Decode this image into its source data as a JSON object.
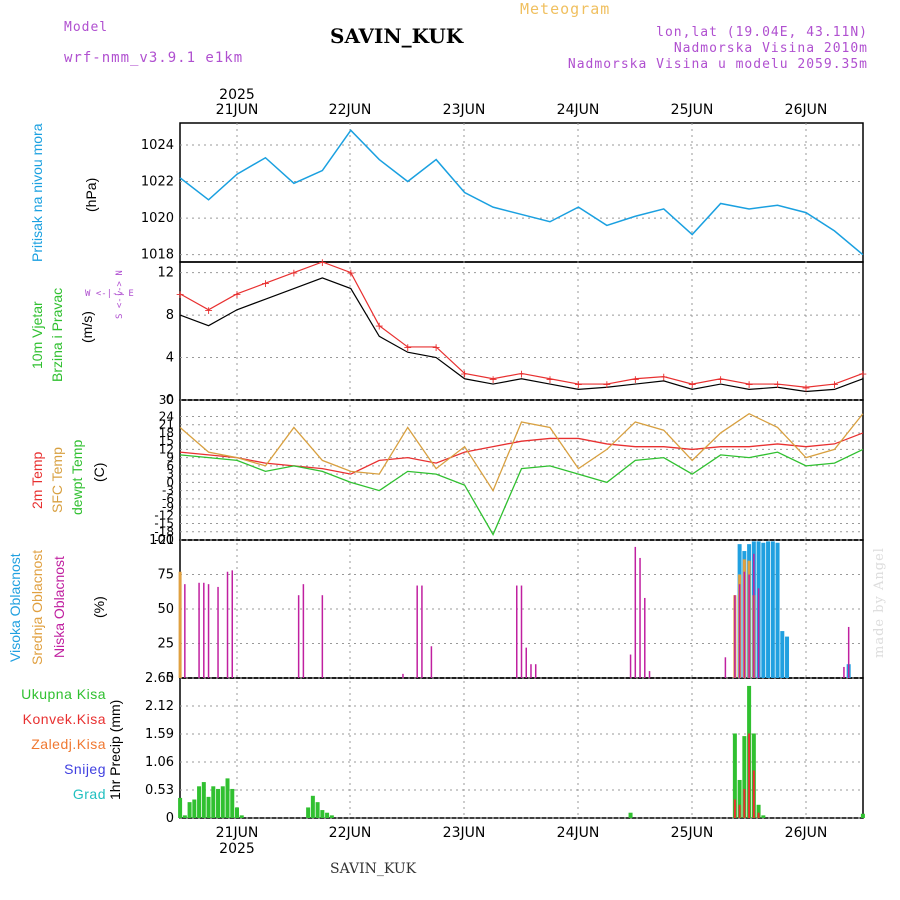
{
  "header": {
    "model_label": "Model",
    "model_name": "wrf-nmm_v3.9.1 e1km",
    "title": "SAVIN_KUK",
    "subtitle": "Meteogram",
    "lonlat": "lon,lat (19.04E, 43.11N)",
    "elevation": "Nadmorska Visina 2010m",
    "model_elevation": "Nadmorska Visina u modelu 2059.35m"
  },
  "footer": {
    "station": "SAVIN_KUK",
    "watermark": "made by Angel"
  },
  "colors": {
    "pressure": "#1aa0e0",
    "temp2m": "#e83030",
    "sfc_temp": "#d8a040",
    "dewpt": "#30c030",
    "high_cloud": "#20a0e0",
    "mid_cloud": "#e0a040",
    "low_cloud": "#c020a0",
    "precip_total": "#30c030",
    "precip_conv": "#e83030",
    "wind_speed": "#000000",
    "wind_gust": "#e83030"
  },
  "time_axis": {
    "year": "2025",
    "days": [
      "21JUN",
      "22JUN",
      "23JUN",
      "24JUN",
      "25JUN",
      "26JUN"
    ],
    "start_hour": 0,
    "end_hour": 144
  },
  "panel_labels": {
    "pressure": [
      "Pritisak na nivou mora",
      "(hPa)"
    ],
    "wind": [
      "10m Vjetar",
      "Brzina i Pravac",
      "(m/s)"
    ],
    "wind_compass": [
      "N",
      "W <-|-> E",
      "S"
    ],
    "temp": [
      "2m Temp",
      "SFC Temp",
      "dewpt Temp",
      "(C)"
    ],
    "cloud": [
      "Visoka Oblacnost",
      "Srednja Oblacnost",
      "Niska Oblacnost",
      "(%)"
    ],
    "precip_legend": [
      "Ukupna Kisa",
      "Konvek.Kisa",
      "Zaledj.Kisa",
      "Snijeg",
      "Grad"
    ],
    "precip_unit": "1hr Precip (mm)"
  },
  "chart_data": [
    {
      "type": "line",
      "name": "pressure",
      "ylabel": "(hPa)",
      "ylim": [
        1017.6,
        1025.2
      ],
      "yticks": [
        "1018",
        "1020",
        "1022",
        "1024"
      ],
      "ytick_values": [
        1018,
        1020,
        1022,
        1024
      ],
      "x_hours": [
        0,
        6,
        12,
        18,
        24,
        30,
        36,
        42,
        48,
        54,
        60,
        66,
        72,
        78,
        84,
        90,
        96,
        102,
        108,
        114,
        120,
        126,
        132,
        138,
        144
      ],
      "values": [
        1022.2,
        1021.0,
        1022.4,
        1023.3,
        1021.9,
        1022.6,
        1024.8,
        1023.2,
        1022.0,
        1023.2,
        1021.4,
        1020.6,
        1020.2,
        1019.8,
        1020.6,
        1019.6,
        1020.1,
        1020.5,
        1019.1,
        1020.8,
        1020.5,
        1020.7,
        1020.3,
        1019.3,
        1018.0
      ]
    },
    {
      "type": "line",
      "name": "wind",
      "ylabel": "(m/s)",
      "ylim": [
        0,
        13
      ],
      "yticks": [
        "0",
        "4",
        "8",
        "12"
      ],
      "ytick_values": [
        0,
        4,
        8,
        12
      ],
      "x_hours": [
        0,
        6,
        12,
        18,
        24,
        30,
        36,
        42,
        48,
        54,
        60,
        66,
        72,
        78,
        84,
        90,
        96,
        102,
        108,
        114,
        120,
        126,
        132,
        138,
        144
      ],
      "speed": [
        8.0,
        7.0,
        8.5,
        9.5,
        10.5,
        11.5,
        10.5,
        6.0,
        4.5,
        4.0,
        2.0,
        1.5,
        2.0,
        1.5,
        1.0,
        1.2,
        1.5,
        1.8,
        1.0,
        1.5,
        1.0,
        1.2,
        0.8,
        1.0,
        2.0
      ],
      "gust": [
        10.0,
        8.5,
        10.0,
        11.0,
        12.0,
        13.0,
        12.0,
        7.0,
        5.0,
        5.0,
        2.5,
        2.0,
        2.5,
        2.0,
        1.5,
        1.5,
        2.0,
        2.2,
        1.5,
        2.0,
        1.5,
        1.5,
        1.2,
        1.5,
        2.5
      ]
    },
    {
      "type": "line",
      "name": "temperature",
      "ylabel": "(C)",
      "ylim": [
        -21,
        30
      ],
      "yticks": [
        "30",
        "24",
        "21",
        "18",
        "15",
        "12",
        "9",
        "6",
        "3",
        "0",
        "-3",
        "-6",
        "-9",
        "-12",
        "-15",
        "-18",
        "-21"
      ],
      "ytick_values": [
        30,
        24,
        21,
        18,
        15,
        12,
        9,
        6,
        3,
        0,
        -3,
        -6,
        -9,
        -12,
        -15,
        -18,
        -21
      ],
      "x_hours": [
        0,
        6,
        12,
        18,
        24,
        30,
        36,
        42,
        48,
        54,
        60,
        66,
        72,
        78,
        84,
        90,
        96,
        102,
        108,
        114,
        120,
        126,
        132,
        138,
        144
      ],
      "series": [
        {
          "name": "2m Temp",
          "values": [
            11,
            10,
            9,
            7,
            6,
            5,
            3,
            8,
            9,
            7,
            11,
            13,
            15,
            16,
            16,
            14,
            13,
            13,
            12,
            13,
            13,
            14,
            13,
            14,
            18
          ]
        },
        {
          "name": "SFC Temp",
          "values": [
            20,
            11,
            9,
            6,
            20,
            8,
            4,
            3,
            20,
            5,
            13,
            -3,
            22,
            20,
            5,
            12,
            22,
            19,
            8,
            18,
            25,
            20,
            9,
            12,
            25
          ]
        },
        {
          "name": "dewpt Temp",
          "values": [
            10,
            9,
            8,
            4,
            6,
            4,
            0,
            -3,
            4,
            3,
            -1,
            -19,
            5,
            6,
            3,
            0,
            8,
            9,
            3,
            10,
            9,
            11,
            6,
            7,
            12
          ]
        }
      ]
    },
    {
      "type": "bar",
      "name": "cloud",
      "ylabel": "(%)",
      "ylim": [
        0,
        100
      ],
      "yticks": [
        "0",
        "25",
        "50",
        "75",
        "100"
      ],
      "ytick_values": [
        0,
        25,
        50,
        75,
        100
      ],
      "series": [
        {
          "name": "Visoka Oblacnost",
          "x_hours": [
            118,
            119,
            120,
            121,
            122,
            123,
            124,
            125,
            126,
            127,
            128,
            141
          ],
          "values": [
            97,
            92,
            97,
            99,
            99,
            98,
            99,
            99,
            98,
            34,
            30,
            10
          ]
        },
        {
          "name": "Srednja Oblacnost",
          "x_hours": [
            0,
            117,
            118,
            119,
            120,
            121
          ],
          "values": [
            77,
            60,
            75,
            86,
            85,
            60
          ]
        },
        {
          "name": "Niska Oblacnost",
          "x_hours": [
            1,
            4,
            5,
            6,
            8,
            10,
            11,
            25,
            26,
            30,
            47,
            50,
            51,
            53,
            75,
            71,
            72,
            73,
            74,
            95,
            96,
            97,
            98,
            99,
            115,
            117,
            118,
            119,
            120,
            121,
            122,
            140,
            141
          ],
          "values": [
            68,
            69,
            69,
            68,
            66,
            77,
            78,
            60,
            68,
            60,
            3,
            67,
            67,
            23,
            10,
            67,
            67,
            22,
            10,
            17,
            95,
            87,
            58,
            5,
            15,
            60,
            68,
            77,
            75,
            90,
            65,
            8,
            37
          ]
        }
      ]
    },
    {
      "type": "bar",
      "name": "precipitation",
      "ylabel": "1hr Precip (mm)",
      "ylim": [
        0,
        2.65
      ],
      "yticks": [
        "0",
        "0.53",
        "1.06",
        "1.59",
        "2.12",
        "2.65"
      ],
      "ytick_values": [
        0,
        0.53,
        1.06,
        1.59,
        2.12,
        2.65
      ],
      "series": [
        {
          "name": "Ukupna Kisa",
          "x_hours": [
            0,
            1,
            2,
            3,
            4,
            5,
            6,
            7,
            8,
            9,
            10,
            11,
            12,
            13,
            27,
            28,
            29,
            30,
            31,
            32,
            95,
            117,
            118,
            119,
            120,
            121,
            122,
            123,
            144
          ],
          "values": [
            0.38,
            0.05,
            0.3,
            0.35,
            0.6,
            0.68,
            0.4,
            0.6,
            0.55,
            0.6,
            0.75,
            0.55,
            0.2,
            0.05,
            0.2,
            0.42,
            0.3,
            0.15,
            0.1,
            0.05,
            0.1,
            1.6,
            0.72,
            1.55,
            2.5,
            1.6,
            0.25,
            0.05,
            0.08
          ]
        },
        {
          "name": "Konvek.Kisa",
          "x_hours": [
            117,
            118,
            119,
            120,
            121,
            122
          ],
          "values": [
            0.35,
            0.25,
            0.55,
            1.6,
            0.9,
            0.1
          ]
        }
      ]
    }
  ]
}
